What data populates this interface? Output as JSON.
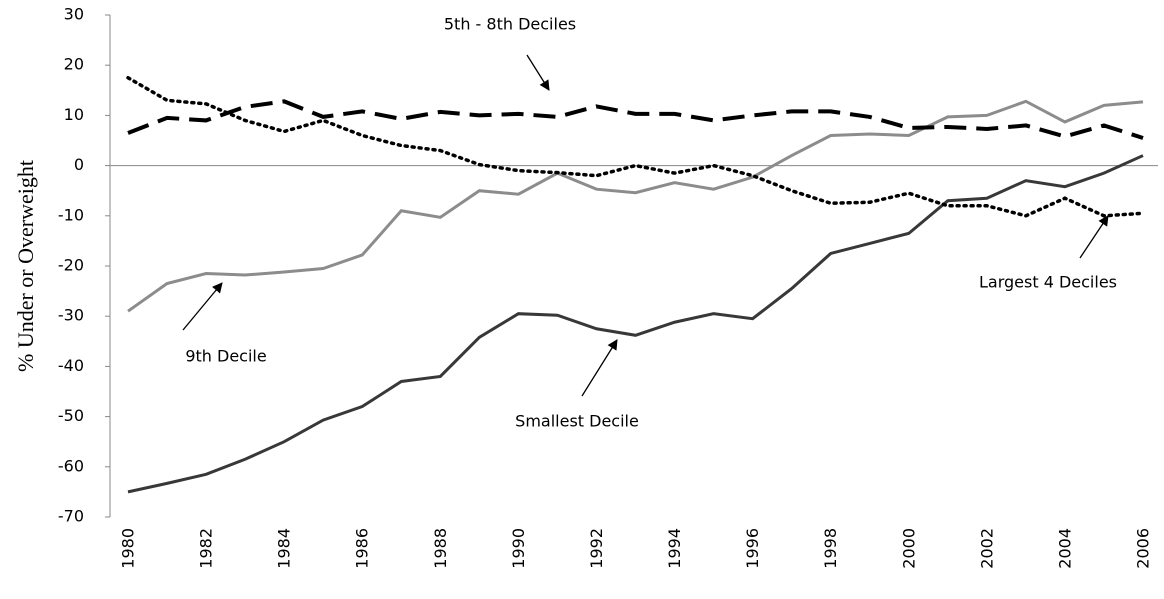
{
  "chart_data": {
    "type": "line",
    "y_label": "% Under or Overweight",
    "x": [
      1980,
      1981,
      1982,
      1983,
      1984,
      1985,
      1986,
      1987,
      1988,
      1989,
      1990,
      1991,
      1992,
      1993,
      1994,
      1995,
      1996,
      1997,
      1998,
      1999,
      2000,
      2001,
      2002,
      2003,
      2004,
      2005,
      2006
    ],
    "xlim": [
      1980,
      2006
    ],
    "xticks": [
      1980,
      1982,
      1984,
      1986,
      1988,
      1990,
      1992,
      1994,
      1996,
      1998,
      2000,
      2002,
      2004,
      2006
    ],
    "ylim": [
      -70,
      30
    ],
    "yticks": [
      -70,
      -60,
      -50,
      -40,
      -30,
      -20,
      -10,
      0,
      10,
      20,
      30
    ],
    "grid": false,
    "series": [
      {
        "name": "Smallest Decile",
        "color": "#383838",
        "style": "solid",
        "values": [
          -65,
          -63.3,
          -61.5,
          -58.5,
          -55,
          -50.7,
          -48,
          -43,
          -42,
          -34.2,
          -29.5,
          -29.8,
          -32.5,
          -33.8,
          -31.2,
          -29.5,
          -30.5,
          -24.5,
          -17.5,
          -15.5,
          -13.5,
          -7,
          -6.5,
          -3,
          -4.2,
          -1.5,
          2
        ]
      },
      {
        "name": "9th Decile",
        "color": "#8c8c8c",
        "style": "solid",
        "values": [
          -29,
          -23.5,
          -21.5,
          -21.8,
          -21.2,
          -20.5,
          -17.8,
          -9,
          -10.3,
          -5,
          -5.7,
          -1.5,
          -4.7,
          -5.4,
          -3.4,
          -4.7,
          -2.3,
          2,
          6,
          6.3,
          6,
          9.7,
          10,
          12.8,
          8.7,
          12,
          12.7
        ]
      },
      {
        "name": "5th - 8th Deciles",
        "color": "#000000",
        "style": "dashed",
        "values": [
          6.5,
          9.5,
          9,
          11.7,
          12.8,
          9.7,
          10.8,
          9.3,
          10.7,
          10,
          10.3,
          9.7,
          11.8,
          10.3,
          10.3,
          9,
          10,
          10.8,
          10.8,
          9.7,
          7.5,
          7.7,
          7.3,
          8,
          5.8,
          8,
          5.5
        ]
      },
      {
        "name": "Largest 4 Deciles",
        "color": "#000000",
        "style": "dotted",
        "values": [
          17.5,
          13,
          12.3,
          9,
          6.8,
          9,
          6,
          4,
          3,
          0.2,
          -1,
          -1.4,
          -2,
          0,
          -1.5,
          0,
          -2,
          -5,
          -7.5,
          -7.3,
          -5.5,
          -8,
          -8,
          -10,
          -6.5,
          -10,
          -9.5
        ]
      }
    ]
  }
}
